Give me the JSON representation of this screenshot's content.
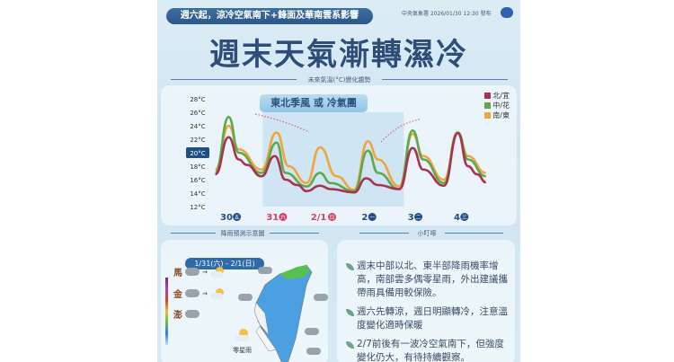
{
  "header": {
    "banner": "週六起，涼冷空氣南下+鋒面及華南雲系影響",
    "issued": "中央氣象署 2026/01/30 12:30 發布",
    "title": "週末天氣漸轉濕冷"
  },
  "chart_section": {
    "heading": "未來氣溫(°C)變化趨勢",
    "highlight_label": "東北季風 或 冷氣團"
  },
  "chart_data": {
    "type": "line",
    "title": "未來氣溫(°C)變化趨勢",
    "yticks": [
      "28°C",
      "26°C",
      "24°C",
      "22°C",
      "20°C",
      "18°C",
      "16°C",
      "14°C",
      "12°C"
    ],
    "ylim": [
      12,
      28
    ],
    "highlighted_ytick": "20°C",
    "categories": [
      {
        "day": "30",
        "weekday": "五",
        "weekend": false
      },
      {
        "day": "31",
        "weekday": "六",
        "weekend": true
      },
      {
        "day": "2/1",
        "weekday": "日",
        "weekend": true
      },
      {
        "day": "2",
        "weekday": "一",
        "weekend": false
      },
      {
        "day": "3",
        "weekday": "二",
        "weekend": false
      },
      {
        "day": "4",
        "weekday": "三",
        "weekend": false
      }
    ],
    "highlight_range": [
      0.71,
      3.77
    ],
    "legend_placement": "top-right",
    "series": [
      {
        "name": "北/宜",
        "color": "#a8334f",
        "points": [
          [
            -0.32,
            16.8
          ],
          [
            -0.03,
            22.3
          ],
          [
            0.19,
            19
          ],
          [
            0.36,
            18.2
          ],
          [
            0.68,
            16.5
          ],
          [
            0.97,
            19.5
          ],
          [
            1.2,
            16
          ],
          [
            1.46,
            15.2
          ],
          [
            1.66,
            14.3
          ],
          [
            1.95,
            15.1
          ],
          [
            2.18,
            14.6
          ],
          [
            2.69,
            14.1
          ],
          [
            2.95,
            16.2
          ],
          [
            3.21,
            15.2
          ],
          [
            3.67,
            14.6
          ],
          [
            3.96,
            20.7
          ],
          [
            4.19,
            17.5
          ],
          [
            4.64,
            15.1
          ],
          [
            4.94,
            22.9
          ],
          [
            5.16,
            18
          ],
          [
            5.36,
            16.8
          ],
          [
            5.55,
            15.6
          ]
        ]
      },
      {
        "name": "中/花",
        "color": "#5ea84c",
        "points": [
          [
            -0.32,
            17
          ],
          [
            -0.03,
            25.3
          ],
          [
            0.19,
            20
          ],
          [
            0.68,
            17
          ],
          [
            1.01,
            21.5
          ],
          [
            1.2,
            17
          ],
          [
            1.66,
            15
          ],
          [
            1.95,
            17
          ],
          [
            2.18,
            15.5
          ],
          [
            2.69,
            14.3
          ],
          [
            2.99,
            20.3
          ],
          [
            3.21,
            17
          ],
          [
            3.67,
            14.6
          ],
          [
            3.96,
            23.3
          ],
          [
            4.19,
            19
          ],
          [
            4.64,
            15.5
          ],
          [
            4.94,
            23
          ],
          [
            5.16,
            19
          ],
          [
            5.55,
            16.5
          ]
        ]
      },
      {
        "name": "南/東",
        "color": "#f0a43c",
        "points": [
          [
            -0.32,
            17.5
          ],
          [
            -0.03,
            24
          ],
          [
            0.19,
            20.5
          ],
          [
            0.68,
            17.5
          ],
          [
            1.01,
            23
          ],
          [
            1.27,
            18
          ],
          [
            1.66,
            15.5
          ],
          [
            1.95,
            20.8
          ],
          [
            2.31,
            16.5
          ],
          [
            2.69,
            14.5
          ],
          [
            2.99,
            21.7
          ],
          [
            3.21,
            19
          ],
          [
            3.67,
            15
          ],
          [
            3.96,
            22.8
          ],
          [
            4.19,
            19.5
          ],
          [
            4.64,
            16
          ],
          [
            4.94,
            23
          ],
          [
            5.16,
            19.5
          ],
          [
            5.55,
            17
          ]
        ]
      }
    ]
  },
  "rain_section": {
    "heading": "降雨預測示意圖",
    "date_range": "1/31(六) - 2/1(日)",
    "islands": [
      {
        "name": "馬",
        "has_change": true
      },
      {
        "name": "金",
        "has_change": true
      },
      {
        "name": "澎",
        "has_change": false
      }
    ],
    "map_label": "零星雨"
  },
  "tips_section": {
    "heading": "小叮嚀",
    "items": [
      "週末中部以北、東半部降雨機率增高，南部雲多偶零星雨，外出建議攜帶雨具備用較保險。",
      "週六先轉涼，週日明顯轉冷，注意溫度變化適時保暖",
      "2/7前後有一波冷空氣南下，但強度變化仍大，有待持續觀察。"
    ]
  }
}
